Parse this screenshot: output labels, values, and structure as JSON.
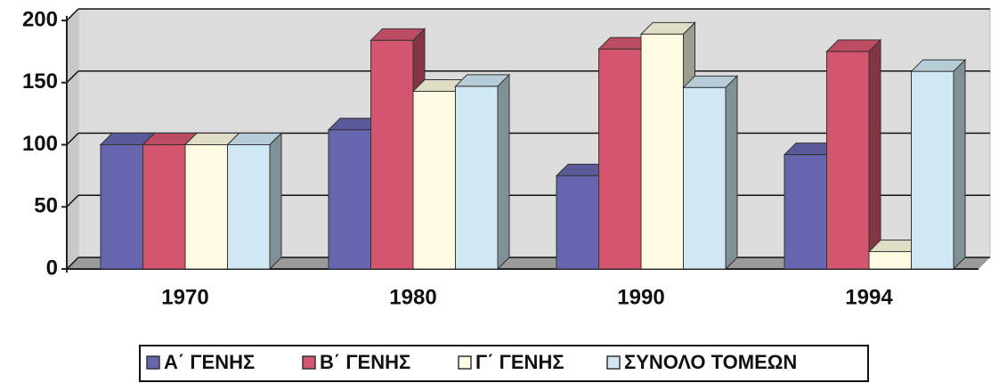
{
  "chart_data": {
    "type": "bar3d",
    "categories": [
      "1970",
      "1980",
      "1990",
      "1994"
    ],
    "series": [
      {
        "name": "Α΄ ΓΕΝΗΣ",
        "color": "#6666b0",
        "values": [
          100,
          112,
          75,
          92
        ]
      },
      {
        "name": "Β΄ ΓΕΝΗΣ",
        "color": "#d4566e",
        "values": [
          100,
          184,
          177,
          175
        ]
      },
      {
        "name": "Γ΄ ΓΕΝΗΣ",
        "color": "#fffbe2",
        "values": [
          100,
          143,
          189,
          14
        ]
      },
      {
        "name": "ΣΥΝΟΛΟ ΤΟΜΕΩΝ",
        "color": "#cfe8f4",
        "values": [
          100,
          147,
          146,
          159
        ]
      }
    ],
    "ylim": [
      0,
      200
    ],
    "yticks": [
      0,
      50,
      100,
      150,
      200
    ],
    "grid": true,
    "legend": "bottom"
  }
}
